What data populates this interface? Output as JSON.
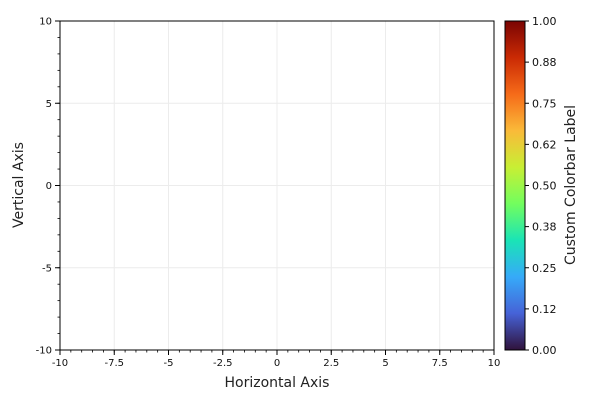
{
  "chart_data": {
    "type": "scatter",
    "title": "",
    "xlabel": "Horizontal Axis",
    "ylabel": "Vertical Axis",
    "xlim": [
      -10,
      10
    ],
    "ylim": [
      -10,
      10
    ],
    "x_ticks": [
      -10,
      -7.5,
      -5,
      -2.5,
      0,
      2.5,
      5,
      7.5,
      10
    ],
    "x_tick_labels": [
      "-10",
      "-7.5",
      "-5",
      "-2.5",
      "0",
      "2.5",
      "5",
      "7.5",
      "10"
    ],
    "y_ticks": [
      -10,
      -5,
      0,
      5,
      10
    ],
    "y_tick_labels": [
      "-10",
      "-5",
      "0",
      "5",
      "10"
    ],
    "grid": true,
    "series": [],
    "colorbar": {
      "label": "Custom Colorbar Label",
      "range": [
        0,
        1
      ],
      "colormap": "turbo",
      "ticks": [
        0,
        0.125,
        0.25,
        0.375,
        0.5,
        0.625,
        0.75,
        0.875,
        1.0
      ],
      "tick_labels": [
        "0.00",
        "0.12",
        "0.25",
        "0.38",
        "0.50",
        "0.62",
        "0.75",
        "0.88",
        "1.00"
      ],
      "colors": [
        "#30123b",
        "#4662d7",
        "#36aaf9",
        "#1ae4b6",
        "#72fe5e",
        "#c8ef34",
        "#faba39",
        "#f66b19",
        "#ca2a04",
        "#7a0403"
      ]
    }
  }
}
